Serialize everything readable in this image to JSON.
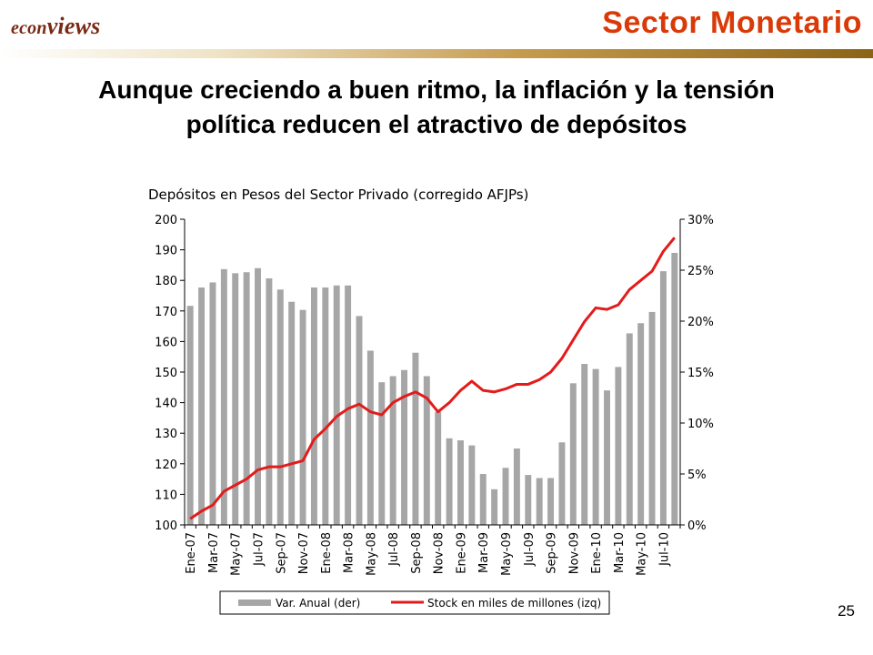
{
  "header": {
    "logo_part1": "econ",
    "logo_part2": "views",
    "section_title": "Sector Monetario"
  },
  "headline": {
    "line1": "Aunque creciendo a buen ritmo, la inflación y la tensión",
    "line2": "política reducen el atractivo de depósitos"
  },
  "page_number": "25",
  "colors": {
    "bar": "#a6a6a6",
    "line": "#e31b1b",
    "header_title": "#d93a08",
    "logo": "#7a2a14"
  },
  "chart_data": {
    "type": "bar+line",
    "title": "Depósitos en Pesos del Sector Privado (corregido AFJPs)",
    "x": [
      "Ene-07",
      "Feb-07",
      "Mar-07",
      "Abr-07",
      "May-07",
      "Jun-07",
      "Jul-07",
      "Ago-07",
      "Sep-07",
      "Oct-07",
      "Nov-07",
      "Dic-07",
      "Ene-08",
      "Feb-08",
      "Mar-08",
      "Abr-08",
      "May-08",
      "Jun-08",
      "Jul-08",
      "Ago-08",
      "Sep-08",
      "Oct-08",
      "Nov-08",
      "Dic-08",
      "Ene-09",
      "Feb-09",
      "Mar-09",
      "Abr-09",
      "May-09",
      "Jun-09",
      "Jul-09",
      "Ago-09",
      "Sep-09",
      "Oct-09",
      "Nov-09",
      "Dic-09",
      "Ene-10",
      "Feb-10",
      "Mar-10",
      "Abr-10",
      "May-10",
      "Jun-10",
      "Jul-10",
      "Ago-10"
    ],
    "x_tick_labels": [
      "Ene-07",
      "Mar-07",
      "May-07",
      "Jul-07",
      "Sep-07",
      "Nov-07",
      "Ene-08",
      "Mar-08",
      "May-08",
      "Jul-08",
      "Sep-08",
      "Nov-08",
      "Ene-09",
      "Mar-09",
      "May-09",
      "Jul-09",
      "Sep-09",
      "Nov-09",
      "Ene-10",
      "Mar-10",
      "May-10",
      "Jul-10"
    ],
    "series": [
      {
        "name": "Var. Anual (der)",
        "type": "bar",
        "axis": "right",
        "values": [
          21.5,
          23.3,
          23.8,
          25.1,
          24.7,
          24.8,
          25.2,
          24.2,
          23.1,
          21.9,
          21.1,
          23.3,
          23.3,
          23.5,
          23.5,
          20.5,
          17.1,
          14.0,
          14.6,
          15.2,
          16.9,
          14.6,
          11.1,
          8.5,
          8.3,
          7.8,
          5.0,
          3.5,
          5.6,
          7.5,
          4.9,
          4.6,
          4.6,
          8.1,
          13.9,
          15.8,
          15.3,
          13.2,
          15.5,
          18.8,
          19.8,
          20.9,
          24.9,
          26.7
        ]
      },
      {
        "name": "Stock en miles de millones (izq)",
        "type": "line",
        "axis": "left",
        "values": [
          102,
          104.5,
          106.5,
          111,
          113,
          115,
          118,
          119,
          119,
          120,
          121,
          128,
          131.5,
          135.5,
          138,
          139.5,
          137,
          136,
          140,
          142,
          143.5,
          141.5,
          137,
          140,
          144,
          147,
          144,
          143.5,
          144.5,
          146,
          146,
          147.5,
          150,
          154.5,
          160.5,
          166.5,
          171,
          170.5,
          172,
          177,
          180,
          183,
          189.5,
          194
        ]
      }
    ],
    "y_left": {
      "min": 100,
      "max": 200,
      "ticks": [
        "100",
        "110",
        "120",
        "130",
        "140",
        "150",
        "160",
        "170",
        "180",
        "190",
        "200"
      ]
    },
    "y_right": {
      "min": 0,
      "max": 30,
      "ticks": [
        "0%",
        "5%",
        "10%",
        "15%",
        "20%",
        "25%",
        "30%"
      ]
    },
    "legend_position": "bottom",
    "grid": false
  }
}
